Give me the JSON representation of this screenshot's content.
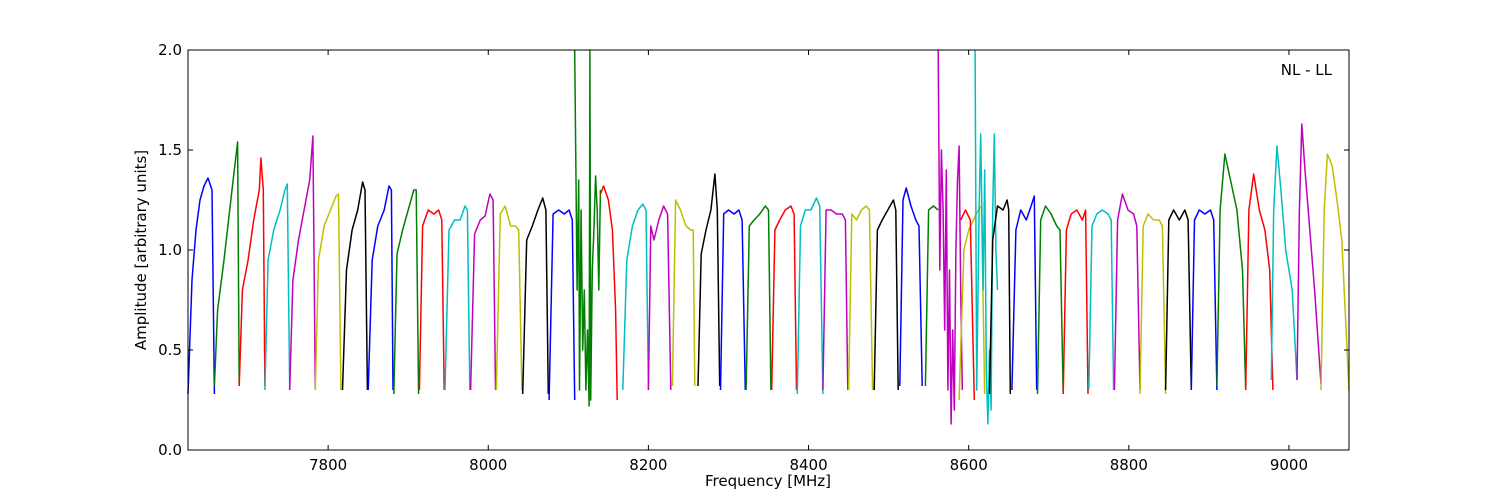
{
  "chart_data": {
    "type": "line",
    "annotation": "NL - LL",
    "xlabel": "Frequency [MHz]",
    "ylabel": "Amplitude [arbitrary units]",
    "xlim": [
      7625,
      9075
    ],
    "ylim": [
      0.0,
      2.0
    ],
    "xticks": [
      7800,
      8000,
      8200,
      8400,
      8600,
      8800,
      9000
    ],
    "yticks": [
      0.0,
      0.5,
      1.0,
      1.5,
      2.0
    ],
    "xtick_labels": [
      "7800",
      "8000",
      "8200",
      "8400",
      "8600",
      "8800",
      "9000"
    ],
    "ytick_labels": [
      "0.0",
      "0.5",
      "1.0",
      "1.5",
      "2.0"
    ],
    "grid": false,
    "colors": {
      "blue": "#0000ff",
      "green": "#007f00",
      "red": "#ff0000",
      "cyan": "#00bfbf",
      "magenta": "#bf00bf",
      "olive": "#bfbf00",
      "black": "#000000"
    },
    "series": [
      {
        "color": "#0000ff",
        "x": [
          7625,
          7630,
          7635,
          7640,
          7645,
          7650,
          7655,
          7658
        ],
        "y": [
          0.28,
          0.85,
          1.1,
          1.25,
          1.32,
          1.36,
          1.3,
          0.28
        ]
      },
      {
        "color": "#007f00",
        "x": [
          7658,
          7662,
          7670,
          7680,
          7687,
          7689
        ],
        "y": [
          0.32,
          0.7,
          0.95,
          1.3,
          1.54,
          0.32
        ]
      },
      {
        "color": "#ff0000",
        "x": [
          7689,
          7693,
          7700,
          7707,
          7714,
          7716,
          7719,
          7721
        ],
        "y": [
          0.32,
          0.8,
          0.95,
          1.15,
          1.3,
          1.46,
          1.3,
          0.32
        ]
      },
      {
        "color": "#00bfbf",
        "x": [
          7721,
          7725,
          7732,
          7740,
          7746,
          7749,
          7752
        ],
        "y": [
          0.3,
          0.95,
          1.1,
          1.2,
          1.3,
          1.33,
          0.3
        ]
      },
      {
        "color": "#bf00bf",
        "x": [
          7752,
          7756,
          7763,
          7770,
          7777,
          7781,
          7784
        ],
        "y": [
          0.3,
          0.85,
          1.05,
          1.2,
          1.35,
          1.57,
          0.3
        ]
      },
      {
        "color": "#bfbf00",
        "x": [
          7784,
          7788,
          7795,
          7803,
          7810,
          7813,
          7816
        ],
        "y": [
          0.3,
          0.95,
          1.12,
          1.2,
          1.27,
          1.28,
          0.3
        ]
      },
      {
        "color": "#000000",
        "x": [
          7818,
          7823,
          7830,
          7837,
          7843,
          7846,
          7849
        ],
        "y": [
          0.3,
          0.9,
          1.1,
          1.2,
          1.34,
          1.3,
          0.3
        ]
      },
      {
        "color": "#0000ff",
        "x": [
          7850,
          7855,
          7862,
          7870,
          7876,
          7879,
          7881
        ],
        "y": [
          0.3,
          0.95,
          1.12,
          1.2,
          1.32,
          1.3,
          0.3
        ]
      },
      {
        "color": "#007f00",
        "x": [
          7882,
          7886,
          7893,
          7900,
          7907,
          7910,
          7913
        ],
        "y": [
          0.28,
          0.98,
          1.1,
          1.2,
          1.3,
          1.3,
          0.28
        ]
      },
      {
        "color": "#ff0000",
        "x": [
          7914,
          7918,
          7925,
          7932,
          7938,
          7942,
          7945
        ],
        "y": [
          0.3,
          1.12,
          1.2,
          1.18,
          1.2,
          1.15,
          0.3
        ]
      },
      {
        "color": "#00bfbf",
        "x": [
          7946,
          7951,
          7958,
          7965,
          7971,
          7974,
          7977
        ],
        "y": [
          0.3,
          1.1,
          1.15,
          1.15,
          1.22,
          1.2,
          0.3
        ]
      },
      {
        "color": "#bf00bf",
        "x": [
          7978,
          7983,
          7990,
          7996,
          8002,
          8006,
          8009
        ],
        "y": [
          0.3,
          1.08,
          1.15,
          1.17,
          1.28,
          1.25,
          0.3
        ]
      },
      {
        "color": "#bfbf00",
        "x": [
          8010,
          8015,
          8021,
          8028,
          8034,
          8038,
          8042
        ],
        "y": [
          0.3,
          1.18,
          1.22,
          1.12,
          1.12,
          1.1,
          0.3
        ]
      },
      {
        "color": "#000000",
        "x": [
          8043,
          8048,
          8055,
          8062,
          8068,
          8072,
          8075
        ],
        "y": [
          0.28,
          1.05,
          1.12,
          1.2,
          1.26,
          1.2,
          0.28
        ]
      },
      {
        "color": "#0000ff",
        "x": [
          8076,
          8081,
          8088,
          8095,
          8101,
          8105,
          8108
        ],
        "y": [
          0.25,
          1.18,
          1.2,
          1.18,
          1.2,
          1.15,
          0.25
        ]
      },
      {
        "color": "#007f00",
        "x": [
          8108,
          8111,
          8113,
          8114,
          8116,
          8118,
          8120,
          8122,
          8124,
          8126,
          8127,
          8128,
          8130,
          8132,
          8134,
          8136,
          8138,
          8140
        ],
        "y": [
          2.0,
          0.8,
          1.35,
          0.3,
          1.2,
          0.5,
          0.8,
          0.3,
          0.6,
          0.22,
          2.0,
          0.25,
          0.9,
          1.1,
          1.37,
          1.2,
          0.8,
          1.3
        ]
      },
      {
        "color": "#ff0000",
        "x": [
          8140,
          8144,
          8150,
          8155,
          8159,
          8161
        ],
        "y": [
          1.28,
          1.32,
          1.25,
          1.1,
          0.7,
          0.25
        ]
      },
      {
        "color": "#00bfbf",
        "x": [
          8168,
          8173,
          8180,
          8187,
          8193,
          8197,
          8200
        ],
        "y": [
          0.3,
          0.95,
          1.12,
          1.2,
          1.23,
          1.2,
          0.3
        ]
      },
      {
        "color": "#bf00bf",
        "x": [
          8200,
          8203,
          8207,
          8213,
          8219,
          8224,
          8228
        ],
        "y": [
          0.3,
          1.12,
          1.05,
          1.15,
          1.22,
          1.18,
          0.3
        ]
      },
      {
        "color": "#bfbf00",
        "x": [
          8230,
          8234,
          8240,
          8247,
          8253,
          8256,
          8258
        ],
        "y": [
          0.32,
          1.25,
          1.2,
          1.12,
          1.1,
          1.1,
          0.32
        ]
      },
      {
        "color": "#000000",
        "x": [
          8262,
          8266,
          8272,
          8278,
          8283,
          8286,
          8289
        ],
        "y": [
          0.32,
          0.98,
          1.1,
          1.2,
          1.38,
          1.2,
          0.32
        ]
      },
      {
        "color": "#0000ff",
        "x": [
          8290,
          8294,
          8300,
          8307,
          8313,
          8317,
          8321
        ],
        "y": [
          0.3,
          1.18,
          1.2,
          1.18,
          1.2,
          1.15,
          0.3
        ]
      },
      {
        "color": "#007f00",
        "x": [
          8322,
          8326,
          8332,
          8339,
          8346,
          8350,
          8353
        ],
        "y": [
          0.3,
          1.12,
          1.15,
          1.18,
          1.22,
          1.2,
          0.3
        ]
      },
      {
        "color": "#ff0000",
        "x": [
          8354,
          8358,
          8364,
          8371,
          8378,
          8382,
          8385
        ],
        "y": [
          0.3,
          1.1,
          1.15,
          1.2,
          1.22,
          1.18,
          0.3
        ]
      },
      {
        "color": "#00bfbf",
        "x": [
          8386,
          8390,
          8396,
          8403,
          8410,
          8414,
          8418
        ],
        "y": [
          0.28,
          1.12,
          1.2,
          1.2,
          1.26,
          1.22,
          0.28
        ]
      },
      {
        "color": "#bf00bf",
        "x": [
          8418,
          8422,
          8428,
          8435,
          8442,
          8446,
          8449
        ],
        "y": [
          0.3,
          1.2,
          1.2,
          1.18,
          1.18,
          1.15,
          0.3
        ]
      },
      {
        "color": "#bfbf00",
        "x": [
          8450,
          8454,
          8460,
          8466,
          8472,
          8476,
          8480
        ],
        "y": [
          0.3,
          1.18,
          1.15,
          1.2,
          1.22,
          1.2,
          0.3
        ]
      },
      {
        "color": "#000000",
        "x": [
          8482,
          8486,
          8492,
          8499,
          8506,
          8509,
          8512
        ],
        "y": [
          0.3,
          1.1,
          1.15,
          1.2,
          1.25,
          1.2,
          0.3
        ]
      },
      {
        "color": "#0000ff",
        "x": [
          8514,
          8518,
          8522,
          8528,
          8534,
          8538,
          8542
        ],
        "y": [
          0.32,
          1.25,
          1.31,
          1.22,
          1.15,
          1.12,
          0.32
        ]
      },
      {
        "color": "#007f00",
        "x": [
          8546,
          8550,
          8556,
          8562
        ],
        "y": [
          0.32,
          1.2,
          1.22,
          1.2
        ]
      },
      {
        "color": "#bf00bf",
        "x": [
          8562,
          8564,
          8566,
          8568,
          8570,
          8572,
          8574,
          8576,
          8578,
          8580,
          8582,
          8584,
          8586,
          8588,
          8590,
          8592
        ],
        "y": [
          2.0,
          0.9,
          1.5,
          1.2,
          0.6,
          1.4,
          0.3,
          0.9,
          0.13,
          0.6,
          0.2,
          1.0,
          1.35,
          1.52,
          0.8,
          0.3
        ]
      },
      {
        "color": "#bfbf00",
        "x": [
          8588,
          8594,
          8600,
          8606,
          8612,
          8616,
          8620
        ],
        "y": [
          0.25,
          1.0,
          1.1,
          1.15,
          1.2,
          1.22,
          0.28
        ]
      },
      {
        "color": "#ff0000",
        "x": [
          8590,
          8596,
          8602,
          8607
        ],
        "y": [
          1.15,
          1.2,
          1.15,
          0.25
        ]
      },
      {
        "color": "#00bfbf",
        "x": [
          8608,
          8610,
          8613,
          8615,
          8618,
          8620,
          8622,
          8624,
          8626,
          8628,
          8630,
          8632,
          8634,
          8636
        ],
        "y": [
          2.0,
          0.3,
          1.2,
          1.58,
          0.8,
          1.4,
          0.4,
          0.13,
          0.5,
          0.2,
          1.2,
          1.58,
          1.0,
          0.8
        ]
      },
      {
        "color": "#000000",
        "x": [
          8626,
          8630,
          8636,
          8643,
          8648,
          8650,
          8652
        ],
        "y": [
          0.28,
          1.05,
          1.22,
          1.2,
          1.25,
          1.2,
          0.28
        ]
      },
      {
        "color": "#0000ff",
        "x": [
          8654,
          8659,
          8665,
          8672,
          8678,
          8682,
          8685
        ],
        "y": [
          0.3,
          1.1,
          1.2,
          1.15,
          1.22,
          1.27,
          0.3
        ]
      },
      {
        "color": "#007f00",
        "x": [
          8686,
          8690,
          8696,
          8703,
          8710,
          8714,
          8718
        ],
        "y": [
          0.28,
          1.15,
          1.22,
          1.18,
          1.12,
          1.1,
          0.28
        ]
      },
      {
        "color": "#ff0000",
        "x": [
          8718,
          8722,
          8728,
          8735,
          8742,
          8746,
          8749
        ],
        "y": [
          0.28,
          1.1,
          1.18,
          1.2,
          1.15,
          1.2,
          0.28
        ]
      },
      {
        "color": "#00bfbf",
        "x": [
          8750,
          8754,
          8760,
          8767,
          8774,
          8778,
          8781
        ],
        "y": [
          0.3,
          1.12,
          1.18,
          1.2,
          1.18,
          1.15,
          0.3
        ]
      },
      {
        "color": "#bf00bf",
        "x": [
          8782,
          8786,
          8792,
          8799,
          8806,
          8810,
          8814
        ],
        "y": [
          0.3,
          1.15,
          1.28,
          1.2,
          1.18,
          1.12,
          0.3
        ]
      },
      {
        "color": "#bfbf00",
        "x": [
          8814,
          8818,
          8824,
          8831,
          8838,
          8842,
          8846
        ],
        "y": [
          0.28,
          1.12,
          1.18,
          1.15,
          1.15,
          1.12,
          0.28
        ]
      },
      {
        "color": "#000000",
        "x": [
          8846,
          8850,
          8856,
          8863,
          8870,
          8874,
          8878
        ],
        "y": [
          0.3,
          1.15,
          1.2,
          1.15,
          1.2,
          1.15,
          0.3
        ]
      },
      {
        "color": "#0000ff",
        "x": [
          8878,
          8882,
          8888,
          8895,
          8902,
          8906,
          8910
        ],
        "y": [
          0.3,
          1.15,
          1.2,
          1.18,
          1.2,
          1.15,
          0.3
        ]
      },
      {
        "color": "#007f00",
        "x": [
          8910,
          8914,
          8920,
          8927,
          8935,
          8942,
          8946
        ],
        "y": [
          0.32,
          1.2,
          1.48,
          1.35,
          1.2,
          0.9,
          0.3
        ]
      },
      {
        "color": "#ff0000",
        "x": [
          8946,
          8950,
          8956,
          8963,
          8970,
          8976,
          8980
        ],
        "y": [
          0.3,
          1.2,
          1.38,
          1.2,
          1.1,
          0.9,
          0.3
        ]
      },
      {
        "color": "#00bfbf",
        "x": [
          8978,
          8981,
          8985,
          8990,
          8996,
          9004,
          9010
        ],
        "y": [
          0.35,
          1.2,
          1.52,
          1.3,
          1.0,
          0.8,
          0.35
        ]
      },
      {
        "color": "#bf00bf",
        "x": [
          9010,
          9013,
          9016,
          9020,
          9026,
          9032,
          9040
        ],
        "y": [
          0.35,
          1.2,
          1.63,
          1.4,
          1.1,
          0.8,
          0.33
        ]
      },
      {
        "color": "#bfbf00",
        "x": [
          9040,
          9044,
          9048,
          9054,
          9060,
          9066,
          9075
        ],
        "y": [
          0.3,
          1.2,
          1.48,
          1.42,
          1.25,
          1.05,
          0.3
        ]
      }
    ]
  }
}
